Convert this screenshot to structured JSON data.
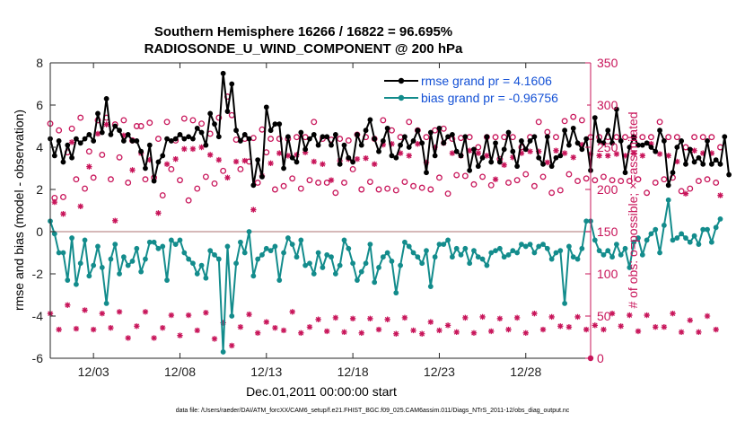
{
  "chart_data": {
    "type": "line",
    "title_line1": "Southern Hemisphere 16266 / 16822 = 96.695%",
    "title_line2": "RADIOSONDE_U_WIND_COMPONENT @ 200 hPa",
    "xlabel": "Dec.01,2011 00:00:00 start",
    "ylabel_left": "rmse and bias (model - observation)",
    "ylabel_right": "# of obs: o=possible; ×=assimilated",
    "ylim_left": [
      -6,
      8
    ],
    "ylim_right": [
      0,
      350
    ],
    "xlim": [
      0.5,
      31.75
    ],
    "xticks": [
      3,
      8,
      13,
      18,
      23,
      28
    ],
    "xtick_labels": [
      "12/03",
      "12/08",
      "12/13",
      "12/18",
      "12/23",
      "12/28"
    ],
    "yticks_left": [
      -6,
      -4,
      -2,
      0,
      2,
      4,
      6,
      8
    ],
    "ytick_labels_left": [
      "-6",
      "-4",
      "-2",
      "0",
      "2",
      "4",
      "6",
      "8"
    ],
    "yticks_right": [
      0,
      50,
      100,
      150,
      200,
      250,
      300,
      350
    ],
    "ytick_labels_right": [
      "0",
      "50",
      "100",
      "150",
      "200",
      "250",
      "300",
      "350"
    ],
    "legend": {
      "placement": "top-right",
      "entries": [
        "rmse grand pr = 4.1606",
        "bias grand pr = -0.96756"
      ]
    },
    "colors": {
      "rmse": "#000000",
      "bias": "#138c8c",
      "obs": "#c8155a",
      "zero_line": "#c8a0a0",
      "legend_text": "#1451d6"
    },
    "x_start": 0.5,
    "x_step": 0.25,
    "series": [
      {
        "name": "rmse",
        "values": [
          4.4,
          3.6,
          4.3,
          3.3,
          4.1,
          3.5,
          4.4,
          4.2,
          4.4,
          4.6,
          4.3,
          5.6,
          4.7,
          6.3,
          4.6,
          5.0,
          4.8,
          4.3,
          4.6,
          4.3,
          4.3,
          3.8,
          3.0,
          4.1,
          2.4,
          3.3,
          3.6,
          4.4,
          4.3,
          4.4,
          4.6,
          4.4,
          4.5,
          4.4,
          4.9,
          4.7,
          4.1,
          5.6,
          5.1,
          4.5,
          7.5,
          5.7,
          7.0,
          4.8,
          4.3,
          4.6,
          4.4,
          2.2,
          3.4,
          2.6,
          5.9,
          4.8,
          5.1,
          5.1,
          3.0,
          4.5,
          3.5,
          3.3,
          4.7,
          3.9,
          4.4,
          4.6,
          4.1,
          4.5,
          4.5,
          4.1,
          4.6,
          3.2,
          4.1,
          3.5,
          3.3,
          4.6,
          4.1,
          4.8,
          5.3,
          4.4,
          3.8,
          4.3,
          4.9,
          3.6,
          3.5,
          4.1,
          4.5,
          4.0,
          4.3,
          4.8,
          4.2,
          2.8,
          4.7,
          3.6,
          4.9,
          4.2,
          4.5,
          4.6,
          3.8,
          3.6,
          4.5,
          2.9,
          3.9,
          3.1,
          3.5,
          4.5,
          3.3,
          4.2,
          3.3,
          3.9,
          4.7,
          3.8,
          3.1,
          4.3,
          3.9,
          4.3,
          4.5,
          3.5,
          3.2,
          4.5,
          3.1,
          3.5,
          3.6,
          4.8,
          4.1,
          4.9,
          4.2,
          3.9,
          4.4,
          2.9,
          5.4,
          4.3,
          4.2,
          4.8,
          4.2,
          5.8,
          4.3,
          2.8,
          4.0,
          4.5,
          4.1,
          4.1,
          4.2,
          4.0,
          3.8,
          4.8,
          4.3,
          2.2,
          2.8,
          4.0,
          4.3,
          3.2,
          3.9,
          3.3,
          3.5,
          3.2,
          4.3,
          3.2,
          3.4,
          3.2,
          4.5,
          2.7
        ],
        "points_drawn": true
      },
      {
        "name": "bias",
        "values": [
          0.5,
          -0.1,
          -1.0,
          -1.0,
          -2.3,
          -0.3,
          -2.5,
          -1.5,
          -0.4,
          -2.1,
          -1.6,
          -0.7,
          -1.7,
          -3.4,
          -1.3,
          -0.6,
          -2.0,
          -1.2,
          -1.6,
          -1.4,
          -0.8,
          -1.9,
          -1.3,
          -0.5,
          -0.5,
          -0.8,
          -0.7,
          -2.3,
          -0.4,
          -0.6,
          -0.4,
          -1.0,
          -1.3,
          -1.5,
          -2.0,
          -1.6,
          -2.2,
          -0.9,
          -1.1,
          -1.3,
          -5.7,
          -0.7,
          -4.0,
          -1.5,
          -0.5,
          -1.0,
          0.0,
          -2.1,
          -1.3,
          -1.1,
          -0.8,
          -0.9,
          -0.7,
          -2.3,
          -1.0,
          -0.3,
          -0.6,
          -1.2,
          -0.4,
          -1.6,
          -1.5,
          -2.0,
          -1.0,
          -1.7,
          -1.1,
          -1.2,
          -2.0,
          -1.6,
          -0.4,
          -0.8,
          -1.5,
          -2.3,
          -1.9,
          -1.5,
          -0.6,
          -2.4,
          -1.7,
          -1.2,
          -1.0,
          -1.4,
          -2.9,
          -1.6,
          -0.5,
          -0.7,
          -1.0,
          -1.2,
          -1.5,
          -0.9,
          -2.6,
          -1.2,
          -0.6,
          -0.6,
          -0.4,
          -1.2,
          -0.8,
          -1.1,
          -0.8,
          -1.5,
          -0.9,
          -1.2,
          -1.3,
          -1.6,
          -1.0,
          -0.9,
          -0.8,
          -1.2,
          -1.1,
          -0.9,
          -1.0,
          -0.6,
          -0.7,
          -0.6,
          -1.0,
          -0.7,
          -0.6,
          -0.8,
          -1.3,
          -1.0,
          -0.9,
          -3.4,
          -0.7,
          -1.2,
          -1.3,
          -0.8,
          0.5,
          0.5,
          -0.4,
          -0.9,
          -1.1,
          -0.9,
          -1.2,
          -0.6,
          -1.1,
          -0.8,
          -1.7,
          -0.5,
          -0.3,
          -1.1,
          -0.4,
          -0.1,
          0.1,
          -1.0,
          0.3,
          1.5,
          -0.4,
          -0.3,
          -0.1,
          -0.3,
          -0.5,
          -0.2,
          -0.6,
          0.1,
          0.1,
          -0.5,
          0.2,
          0.6
        ],
        "points_drawn": true
      },
      {
        "name": "obs possible (o)",
        "values": [
          278,
          190,
          270,
          191,
          244,
          272,
          212,
          285,
          201,
          245,
          214,
          282,
          241,
          285,
          212,
          277,
          238,
          282,
          208,
          258,
          275,
          275,
          212,
          279,
          214,
          260,
          193,
          280,
          224,
          258,
          211,
          284,
          187,
          282,
          201,
          278,
          215,
          266,
          207,
          285,
          222,
          310,
          288,
          259,
          224,
          260,
          233,
          261,
          208,
          271,
          244,
          260,
          200,
          260,
          204,
          260,
          213,
          262,
          201,
          262,
          211,
          280,
          208,
          260,
          208,
          259,
          196,
          260,
          208,
          258,
          224,
          265,
          200,
          262,
          209,
          260,
          200,
          282,
          201,
          270,
          199,
          262,
          209,
          280,
          204,
          270,
          202,
          262,
          200,
          270,
          214,
          272,
          195,
          260,
          217,
          261,
          216,
          262,
          206,
          250,
          215,
          262,
          205,
          262,
          236,
          262,
          208,
          262,
          211,
          250,
          218,
          262,
          204,
          280,
          215,
          268,
          196,
          262,
          199,
          281,
          218,
          286,
          210,
          282,
          213,
          262,
          211,
          262,
          215,
          262,
          211,
          262,
          210,
          262,
          210,
          262,
          212,
          262,
          196,
          262,
          208,
          280,
          212,
          262,
          214,
          262,
          198,
          250,
          201,
          262,
          210,
          262,
          212,
          262,
          208,
          250
        ],
        "points_drawn": true
      },
      {
        "name": "obs assimilated (×)",
        "values": [
          53,
          185,
          34,
          171,
          63,
          256,
          35,
          180,
          57,
          227,
          34,
          266,
          53,
          277,
          36,
          163,
          55,
          264,
          24,
          223,
          38,
          243,
          55,
          235,
          24,
          172,
          36,
          230,
          51,
          236,
          27,
          248,
          51,
          248,
          33,
          250,
          54,
          241,
          23,
          235,
          42,
          214,
          15,
          233,
          37,
          234,
          52,
          176,
          30,
          216,
          43,
          231,
          36,
          243,
          33,
          240,
          55,
          241,
          30,
          244,
          37,
          233,
          46,
          230,
          32,
          211,
          48,
          234,
          31,
          236,
          47,
          236,
          30,
          237,
          47,
          230,
          34,
          253,
          46,
          254,
          29,
          243,
          48,
          240,
          33,
          254,
          29,
          232,
          43,
          250,
          33,
          255,
          39,
          243,
          31,
          240,
          48,
          246,
          30,
          243,
          49,
          240,
          32,
          212,
          47,
          229,
          34,
          238,
          48,
          243,
          30,
          245,
          53,
          245,
          34,
          232,
          49,
          246,
          38,
          243,
          37,
          238,
          49,
          253,
          34,
          242,
          39,
          240,
          34,
          240,
          53,
          242,
          38,
          240,
          51,
          243,
          32,
          240,
          51,
          254,
          37,
          242,
          37,
          240,
          53,
          233,
          31,
          195,
          45,
          246,
          31,
          243,
          50,
          243,
          34,
          193
        ],
        "points_drawn": true
      }
    ]
  },
  "footer": {
    "data_file": "data file: /Users/raeder/DAI/ATM_forcXX/CAM6_setup/f.e21.FHIST_BGC.f09_025.CAM6assim.011/Diags_NTrS_2011-12/obs_diag_output.nc"
  }
}
